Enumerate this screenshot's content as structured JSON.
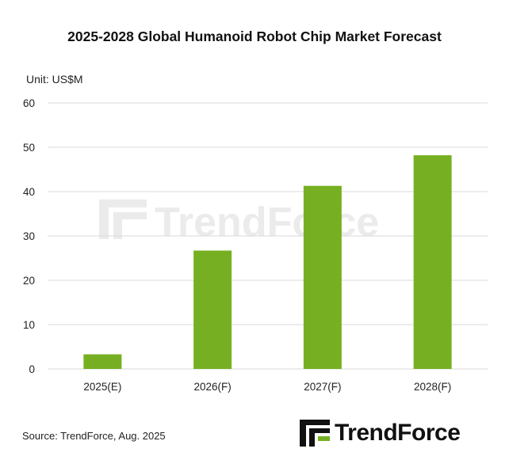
{
  "title": "2025-2028 Global Humanoid  Robot Chip Market Forecast",
  "unit": "Unit: US$M",
  "source": "Source: TrendForce, Aug. 2025",
  "brand": {
    "name": "TrendForce",
    "watermark": "TrendForce",
    "logo_icon": "trendforce-logo-icon"
  },
  "colors": {
    "bar": "#76b022",
    "grid": "#d9d9d9",
    "watermark": "#ebebeb",
    "text": "#222222"
  },
  "chart_data": {
    "type": "bar",
    "title": "2025-2028 Global Humanoid  Robot Chip Market Forecast",
    "categories": [
      "2025(E)",
      "2026(F)",
      "2027(F)",
      "2028(F)"
    ],
    "values": [
      3.3,
      26.7,
      41.3,
      48.2
    ],
    "ylabel": "Unit: US$M",
    "xlabel": "",
    "ylim": [
      0,
      60
    ],
    "yticks": [
      0,
      10,
      20,
      30,
      40,
      50,
      60
    ],
    "grid": true,
    "legend": "none"
  }
}
